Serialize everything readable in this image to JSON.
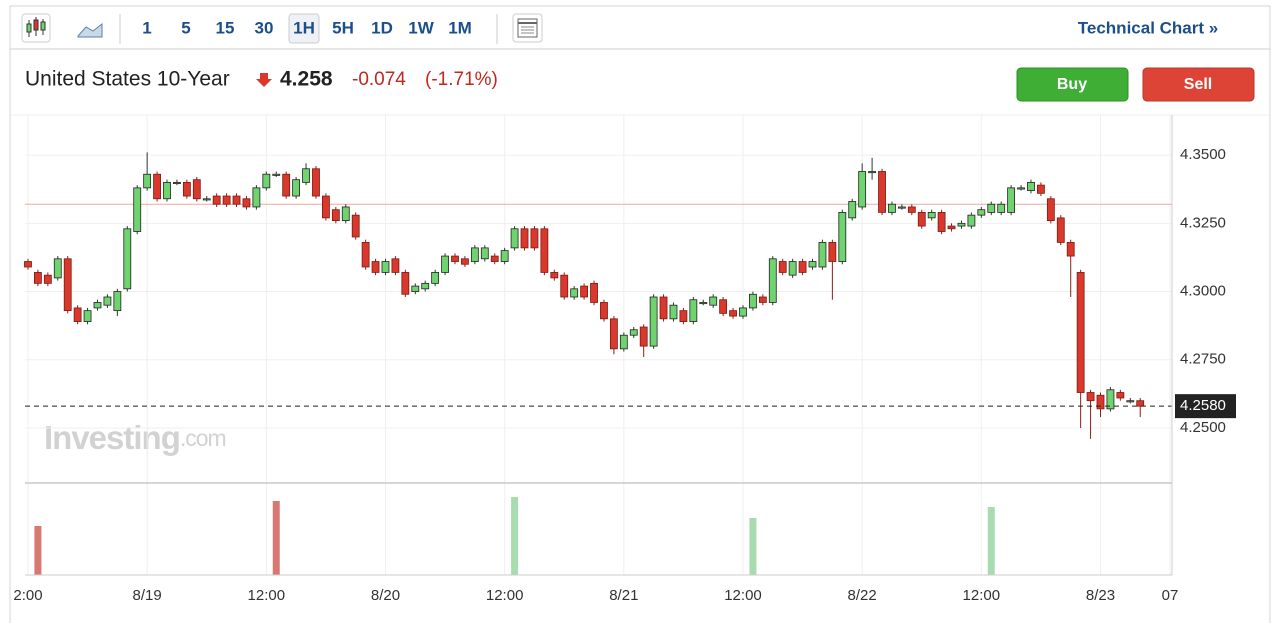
{
  "toolbar": {
    "intervals": [
      "1",
      "5",
      "15",
      "30",
      "1H",
      "5H",
      "1D",
      "1W",
      "1M"
    ],
    "selected_index": 4,
    "technical_chart": "Technical Chart »"
  },
  "header": {
    "title": "United States 10-Year",
    "price": "4.258",
    "change": "-0.074",
    "change_pct": "(-1.71%)"
  },
  "buttons": {
    "buy": "Buy",
    "sell": "Sell"
  },
  "watermark": {
    "brand": "Investing",
    "suffix": ".com"
  },
  "chart_data": {
    "type": "candlestick",
    "up_color": "#6fd36f",
    "down_color": "#d9382c",
    "grid": true,
    "x": [
      -12,
      -11,
      -10,
      -9,
      -8,
      -7,
      -6,
      -5,
      -4,
      -3,
      -2,
      -1,
      0,
      1,
      2,
      3,
      4,
      5,
      6,
      7,
      8,
      9,
      10,
      11,
      12,
      13,
      14,
      15,
      16,
      17,
      18,
      19,
      20,
      21,
      22,
      23,
      24,
      25,
      26,
      27,
      28,
      29,
      30,
      31,
      32,
      33,
      34,
      35,
      36,
      37,
      38,
      39,
      40,
      41,
      42,
      43,
      44,
      45,
      46,
      47,
      48,
      49,
      50,
      51,
      52,
      53,
      54,
      55,
      56,
      57,
      58,
      59,
      60,
      61,
      62,
      63,
      64,
      65,
      66,
      67,
      68,
      69,
      70,
      71,
      72,
      73,
      74,
      75,
      76,
      77,
      78,
      79,
      80,
      81,
      82,
      83,
      84,
      85,
      86,
      87,
      88,
      89,
      90,
      91,
      92,
      93,
      94,
      95,
      96,
      97,
      98,
      99,
      100
    ],
    "open": [
      4.311,
      4.307,
      4.306,
      4.305,
      4.312,
      4.294,
      4.289,
      4.294,
      4.295,
      4.293,
      4.301,
      4.322,
      4.338,
      4.343,
      4.334,
      4.34,
      4.34,
      4.341,
      4.334,
      4.335,
      4.335,
      4.335,
      4.334,
      4.331,
      4.338,
      4.343,
      4.343,
      4.335,
      4.34,
      4.345,
      4.335,
      4.33,
      4.326,
      4.328,
      4.318,
      4.311,
      4.307,
      4.312,
      4.307,
      4.3,
      4.301,
      4.303,
      4.307,
      4.313,
      4.312,
      4.311,
      4.312,
      4.313,
      4.311,
      4.316,
      4.323,
      4.323,
      4.323,
      4.307,
      4.306,
      4.298,
      4.302,
      4.303,
      4.296,
      4.29,
      4.279,
      4.284,
      4.287,
      4.28,
      4.298,
      4.29,
      4.293,
      4.289,
      4.296,
      4.295,
      4.297,
      4.293,
      4.291,
      4.294,
      4.298,
      4.296,
      4.311,
      4.306,
      4.311,
      4.309,
      4.309,
      4.318,
      4.311,
      4.327,
      4.331,
      4.344,
      4.344,
      4.329,
      4.331,
      4.331,
      4.329,
      4.327,
      4.329,
      4.324,
      4.324,
      4.324,
      4.328,
      4.329,
      4.329,
      4.329,
      4.338,
      4.337,
      4.339,
      4.334,
      4.327,
      4.318,
      4.307,
      4.263,
      4.262,
      4.257,
      4.263,
      4.26,
      4.26
    ],
    "high": [
      4.312,
      4.308,
      4.307,
      4.313,
      4.313,
      4.295,
      4.294,
      4.297,
      4.299,
      4.301,
      4.324,
      4.339,
      4.351,
      4.344,
      4.341,
      4.341,
      4.341,
      4.342,
      4.335,
      4.336,
      4.336,
      4.336,
      4.335,
      4.339,
      4.344,
      4.344,
      4.344,
      4.342,
      4.347,
      4.346,
      4.336,
      4.331,
      4.332,
      4.329,
      4.319,
      4.312,
      4.312,
      4.313,
      4.308,
      4.303,
      4.304,
      4.308,
      4.314,
      4.314,
      4.313,
      4.317,
      4.317,
      4.314,
      4.316,
      4.324,
      4.324,
      4.324,
      4.324,
      4.308,
      4.307,
      4.302,
      4.303,
      4.304,
      4.297,
      4.291,
      4.285,
      4.287,
      4.288,
      4.299,
      4.299,
      4.296,
      4.294,
      4.298,
      4.297,
      4.299,
      4.298,
      4.294,
      4.295,
      4.3,
      4.299,
      4.313,
      4.312,
      4.312,
      4.312,
      4.312,
      4.319,
      4.319,
      4.33,
      4.334,
      4.347,
      4.349,
      4.345,
      4.333,
      4.332,
      4.332,
      4.33,
      4.33,
      4.33,
      4.325,
      4.326,
      4.329,
      4.331,
      4.333,
      4.333,
      4.339,
      4.339,
      4.341,
      4.34,
      4.335,
      4.328,
      4.319,
      4.308,
      4.264,
      4.263,
      4.265,
      4.264,
      4.261,
      4.261
    ],
    "low": [
      4.308,
      4.302,
      4.302,
      4.304,
      4.292,
      4.288,
      4.288,
      4.293,
      4.294,
      4.291,
      4.3,
      4.321,
      4.337,
      4.333,
      4.333,
      4.339,
      4.334,
      4.333,
      4.333,
      4.331,
      4.331,
      4.331,
      4.33,
      4.33,
      4.337,
      4.342,
      4.334,
      4.334,
      4.339,
      4.334,
      4.326,
      4.325,
      4.325,
      4.319,
      4.308,
      4.306,
      4.306,
      4.306,
      4.298,
      4.299,
      4.3,
      4.302,
      4.306,
      4.31,
      4.309,
      4.31,
      4.311,
      4.31,
      4.31,
      4.315,
      4.315,
      4.315,
      4.306,
      4.304,
      4.297,
      4.297,
      4.297,
      4.295,
      4.289,
      4.277,
      4.278,
      4.283,
      4.276,
      4.279,
      4.289,
      4.289,
      4.288,
      4.288,
      4.295,
      4.294,
      4.291,
      4.29,
      4.29,
      4.293,
      4.295,
      4.295,
      4.306,
      4.305,
      4.306,
      4.308,
      4.308,
      4.297,
      4.31,
      4.326,
      4.33,
      4.341,
      4.328,
      4.328,
      4.33,
      4.328,
      4.323,
      4.326,
      4.321,
      4.322,
      4.323,
      4.323,
      4.327,
      4.328,
      4.328,
      4.328,
      4.337,
      4.336,
      4.335,
      4.325,
      4.317,
      4.298,
      4.25,
      4.246,
      4.254,
      4.256,
      4.26,
      4.259,
      4.254
    ],
    "close": [
      4.309,
      4.303,
      4.303,
      4.312,
      4.293,
      4.289,
      4.293,
      4.296,
      4.298,
      4.3,
      4.323,
      4.338,
      4.343,
      4.334,
      4.34,
      4.34,
      4.335,
      4.334,
      4.334,
      4.332,
      4.332,
      4.332,
      4.331,
      4.338,
      4.343,
      4.343,
      4.335,
      4.341,
      4.345,
      4.335,
      4.327,
      4.326,
      4.331,
      4.32,
      4.309,
      4.307,
      4.311,
      4.307,
      4.299,
      4.302,
      4.303,
      4.307,
      4.313,
      4.311,
      4.31,
      4.316,
      4.316,
      4.311,
      4.315,
      4.323,
      4.316,
      4.316,
      4.307,
      4.305,
      4.298,
      4.301,
      4.298,
      4.296,
      4.29,
      4.279,
      4.284,
      4.286,
      4.28,
      4.298,
      4.29,
      4.295,
      4.289,
      4.297,
      4.296,
      4.298,
      4.292,
      4.291,
      4.294,
      4.299,
      4.296,
      4.312,
      4.307,
      4.311,
      4.307,
      4.311,
      4.318,
      4.311,
      4.329,
      4.333,
      4.344,
      4.344,
      4.329,
      4.332,
      4.331,
      4.329,
      4.324,
      4.329,
      4.322,
      4.323,
      4.325,
      4.328,
      4.33,
      4.332,
      4.332,
      4.338,
      4.338,
      4.34,
      4.336,
      4.326,
      4.318,
      4.313,
      4.263,
      4.26,
      4.257,
      4.264,
      4.261,
      4.26,
      4.258
    ],
    "xlim": [
      -12.3,
      103.2
    ],
    "xticks": [
      {
        "value": -12,
        "label": "2:00"
      },
      {
        "value": 0,
        "label": "8/19"
      },
      {
        "value": 12,
        "label": "12:00"
      },
      {
        "value": 24,
        "label": "8/20"
      },
      {
        "value": 36,
        "label": "12:00"
      },
      {
        "value": 48,
        "label": "8/21"
      },
      {
        "value": 60,
        "label": "12:00"
      },
      {
        "value": 72,
        "label": "8/22"
      },
      {
        "value": 84,
        "label": "12:00"
      },
      {
        "value": 96,
        "label": "8/23"
      },
      {
        "value": 103,
        "label": "07"
      }
    ],
    "ylim": [
      4.2302,
      4.3647
    ],
    "yticks": [
      {
        "value": 4.25,
        "label": "4.2500"
      },
      {
        "value": 4.275,
        "label": "4.2750"
      },
      {
        "value": 4.3,
        "label": "4.3000"
      },
      {
        "value": 4.325,
        "label": "4.3250"
      },
      {
        "value": 4.35,
        "label": "4.3500"
      }
    ],
    "reference_line": {
      "value": 4.332,
      "color": "#f0a8a0"
    },
    "last_price": {
      "value": 4.258,
      "label": "4.2580"
    },
    "volume": {
      "x": [
        -11,
        13,
        37,
        61,
        85
      ],
      "values": [
        49,
        74,
        78,
        57,
        68
      ],
      "colors": [
        "#d77873",
        "#d77873",
        "#a9dbb0",
        "#a9dbb0",
        "#a9dbb0"
      ],
      "ylim": [
        0,
        91
      ]
    }
  }
}
